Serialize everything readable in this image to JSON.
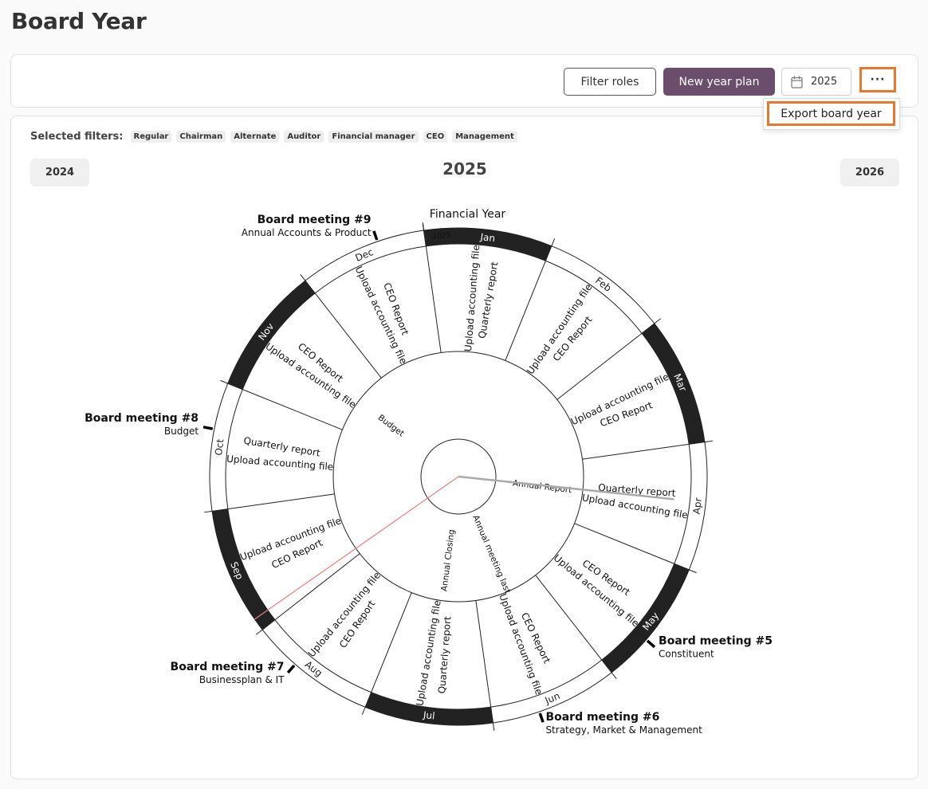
{
  "page": {
    "title": "Board Year"
  },
  "toolbar": {
    "filter_label": "Filter roles",
    "new_plan_label": "New year plan",
    "year_value": "2025",
    "more_label": "···"
  },
  "menu": {
    "export_label": "Export board year"
  },
  "filters": {
    "label": "Selected filters:",
    "chips": [
      "Regular",
      "Chairman",
      "Alternate",
      "Auditor",
      "Financial manager",
      "CEO",
      "Management"
    ]
  },
  "nav": {
    "prev": "2024",
    "current": "2025",
    "next": "2026"
  },
  "wheel": {
    "months": [
      "Jan",
      "Feb",
      "Mar",
      "Apr",
      "May",
      "Jun",
      "Jul",
      "Aug",
      "Sep",
      "Oct",
      "Nov",
      "Dec"
    ],
    "year_label": "2025",
    "financial_year_label": "Financial Year",
    "colors": {
      "dark_segment": "#222222",
      "today_line": "#e88080",
      "pointer": "#aaaaaa",
      "brand": "#6b4e6b",
      "highlight": "#e8782e"
    },
    "activities": [
      {
        "month": "Jan",
        "items": [
          "Upload accounting file",
          "Quarterly report"
        ]
      },
      {
        "month": "Feb",
        "items": [
          "Upload accounting file",
          "CEO Report"
        ]
      },
      {
        "month": "Mar",
        "items": [
          "Upload accounting file",
          "CEO Report"
        ]
      },
      {
        "month": "Apr",
        "items": [
          "Quarterly report",
          "Upload accounting file"
        ]
      },
      {
        "month": "May",
        "items": [
          "CEO Report",
          "Upload accounting file"
        ]
      },
      {
        "month": "Jun",
        "items": [
          "CEO Report",
          "Upload accounting file"
        ]
      },
      {
        "month": "Jul",
        "items": [
          "Quarterly report",
          "Upload accounting file"
        ]
      },
      {
        "month": "Aug",
        "items": [
          "CEO Report",
          "Upload accounting file"
        ]
      },
      {
        "month": "Sep",
        "items": [
          "CEO Report",
          "Upload accounting file"
        ]
      },
      {
        "month": "Oct",
        "items": [
          "Upload accounting file",
          "Quarterly report"
        ]
      },
      {
        "month": "Nov",
        "items": [
          "Upload accounting file",
          "CEO Report"
        ]
      },
      {
        "month": "Dec",
        "items": [
          "Upload accounting file",
          "CEO Report"
        ]
      }
    ],
    "inner_items": [
      {
        "month": "Apr",
        "label": "Annual Report"
      },
      {
        "month": "Jun",
        "label": "Annual meeting last"
      },
      {
        "month": "Jul",
        "label": "Annual Closing"
      },
      {
        "month": "Nov",
        "label": "Budget"
      }
    ],
    "meetings": [
      {
        "title": "Board meeting #5",
        "subtitle": "Constituent",
        "month": "May"
      },
      {
        "title": "Board meeting #6",
        "subtitle": "Strategy, Market & Management",
        "month": "Jun"
      },
      {
        "title": "Board meeting #7",
        "subtitle": "Businessplan & IT",
        "month": "Aug"
      },
      {
        "title": "Board meeting #8",
        "subtitle": "Budget",
        "month": "Oct"
      },
      {
        "title": "Board meeting #9",
        "subtitle": "Annual Accounts & Product",
        "month": "Dec"
      }
    ]
  }
}
